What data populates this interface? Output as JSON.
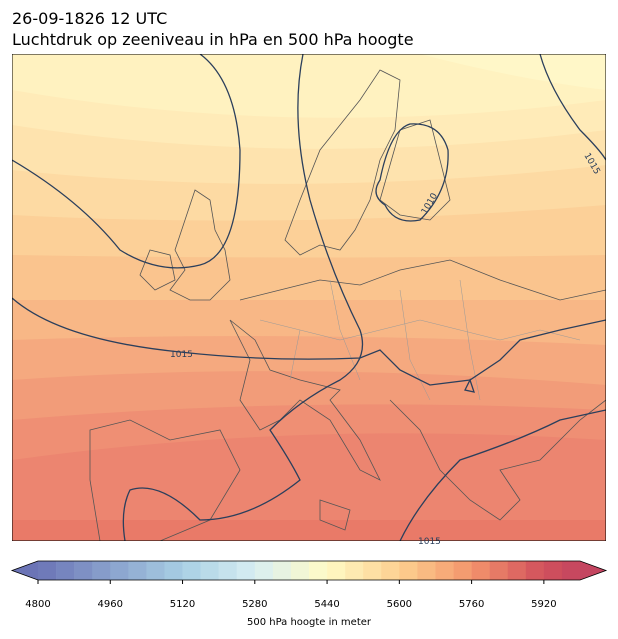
{
  "header": {
    "line1": "26-09-1826 12 UTC",
    "line2": "Luchtdruk op zeeniveau in hPa en 500 hPa hoogte"
  },
  "map": {
    "contour_labels": [
      "1015",
      "1010",
      "1015",
      "1015"
    ]
  },
  "colorbar": {
    "lim": [
      4800,
      6000
    ],
    "step": 40,
    "ticks": [
      4800,
      4960,
      5120,
      5280,
      5440,
      5600,
      5760,
      5920
    ],
    "label": "500 hPa hoogte in meter",
    "colormap": "RdYlBu_r"
  }
}
